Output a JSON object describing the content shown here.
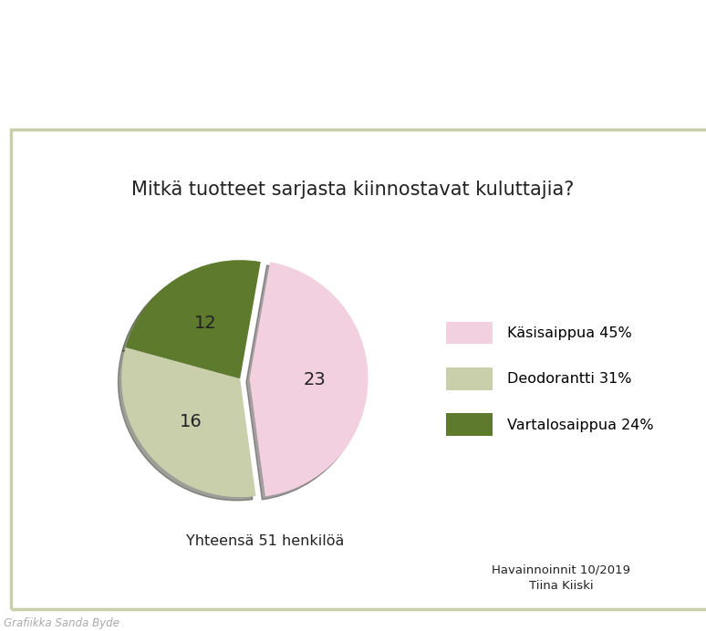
{
  "chart_data": {
    "type": "pie",
    "title": "Mitkä tuotteet sarjasta kiinnostavat kuluttajia?",
    "categories": [
      "Käsisaippua 45%",
      "Deodorantti 31%",
      "Vartalosaippua 24%"
    ],
    "values": [
      23,
      16,
      12
    ],
    "colors": [
      "#f2d0df",
      "#c8cfaa",
      "#5e7a2c"
    ],
    "data_labels": true,
    "legend": "center left",
    "annotations": [
      "Yhteensä 51 henkilöä",
      "Havainnoinnit 10/2019",
      "Tiina Kiiski",
      "Grafiikka Sanda Byde"
    ]
  }
}
